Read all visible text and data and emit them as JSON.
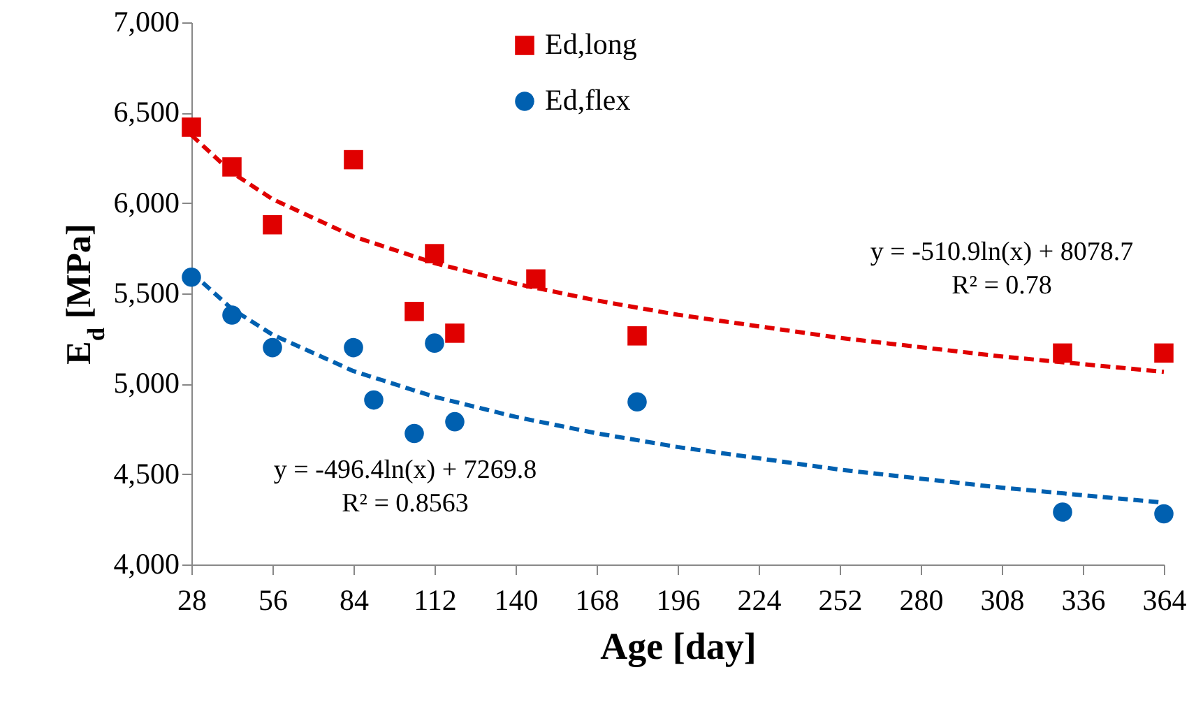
{
  "chart_data": {
    "type": "scatter",
    "xlabel": "Age [day]",
    "ylabel": "E$_{d}$ [MPa]",
    "xlim": [
      28,
      364
    ],
    "xticks": [
      28,
      56,
      84,
      112,
      140,
      168,
      196,
      224,
      252,
      280,
      308,
      336,
      364
    ],
    "ylim": [
      4000,
      7000
    ],
    "yticks": [
      {
        "value": 4000,
        "label": "4,000"
      },
      {
        "value": 4500,
        "label": "4,500"
      },
      {
        "value": 5000,
        "label": "5,000"
      },
      {
        "value": 5500,
        "label": "5,500"
      },
      {
        "value": 6000,
        "label": "6,000"
      },
      {
        "value": 6500,
        "label": "6,500"
      },
      {
        "value": 7000,
        "label": "7,000"
      }
    ],
    "legend": "top",
    "series": [
      {
        "name": "Ed,long",
        "marker": "square",
        "color": "#e00000",
        "x": [
          28,
          42,
          56,
          84,
          105,
          112,
          119,
          147,
          182,
          329,
          364
        ],
        "values": [
          6420,
          6200,
          5880,
          6240,
          5400,
          5720,
          5280,
          5580,
          5265,
          5170,
          5170
        ]
      },
      {
        "name": "Ed,flex",
        "marker": "circle",
        "color": "#0060b0",
        "x": [
          28,
          42,
          56,
          84,
          91,
          105,
          112,
          119,
          182,
          329,
          364
        ],
        "values": [
          5590,
          5380,
          5200,
          5200,
          4910,
          4725,
          5225,
          4790,
          4900,
          4290,
          4280
        ]
      },
      {
        "type": "line",
        "line_style": "dashed",
        "color": "#e00000",
        "x": [
          28,
          42,
          56,
          84,
          112,
          140,
          168,
          196,
          252,
          308,
          364
        ],
        "values": [
          6376,
          6169,
          6022,
          5815,
          5668,
          5554,
          5461,
          5382,
          5254,
          5151,
          5066
        ]
      },
      {
        "type": "line",
        "line_style": "dashed",
        "color": "#0060b0",
        "x": [
          28,
          42,
          56,
          84,
          112,
          140,
          168,
          196,
          252,
          308,
          364
        ],
        "values": [
          5616,
          5414,
          5272,
          5070,
          4928,
          4817,
          4726,
          4650,
          4525,
          4425,
          4342
        ]
      }
    ],
    "annotations": [
      "y = -510.9ln(x) + 8078.7\nR² = 0.78",
      "y = -496.4ln(x) + 7269.8\nR² = 0.8563"
    ]
  }
}
